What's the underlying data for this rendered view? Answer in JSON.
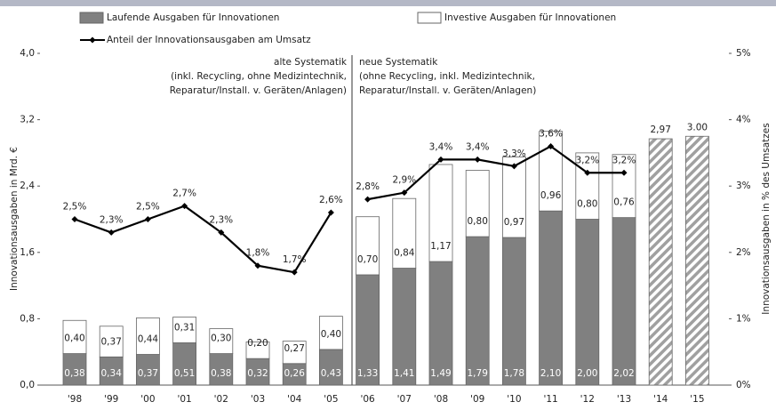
{
  "chart_data": {
    "type": "bar",
    "stacked": true,
    "categories": [
      "'98",
      "'99",
      "'00",
      "'01",
      "'02",
      "'03",
      "'04",
      "'05",
      "'06",
      "'07",
      "'08",
      "'09",
      "'10",
      "'11",
      "'12",
      "'13",
      "'14",
      "'15"
    ],
    "series": [
      {
        "name": "Laufende Ausgaben für Innovationen",
        "color": "#808080",
        "values": [
          0.38,
          0.34,
          0.37,
          0.51,
          0.38,
          0.32,
          0.26,
          0.43,
          1.33,
          1.41,
          1.49,
          1.79,
          1.78,
          2.1,
          2.0,
          2.02,
          null,
          null
        ],
        "value_labels": [
          "0,38",
          "0,34",
          "0,37",
          "0,51",
          "0,38",
          "0,32",
          "0,26",
          "0,43",
          "1,33",
          "1,41",
          "1,49",
          "1,79",
          "1,78",
          "2,10",
          "2,00",
          "2,02",
          null,
          null
        ]
      },
      {
        "name": "Investive Ausgaben für Innovationen",
        "color": "#ffffff",
        "values": [
          0.4,
          0.37,
          0.44,
          0.31,
          0.3,
          0.2,
          0.27,
          0.4,
          0.7,
          0.84,
          1.17,
          0.8,
          0.97,
          0.96,
          0.8,
          0.76,
          null,
          null
        ],
        "value_labels": [
          "0,40",
          "0,37",
          "0,44",
          "0,31",
          "0,30",
          "0,20",
          "0,27",
          "0,40",
          "0,70",
          "0,84",
          "1,17",
          "0,80",
          "0,97",
          "0,96",
          "0,80",
          "0,76",
          null,
          null
        ]
      },
      {
        "pattern": "hatched",
        "color": "#a0a0a0",
        "values": [
          null,
          null,
          null,
          null,
          null,
          null,
          null,
          null,
          null,
          null,
          null,
          null,
          null,
          null,
          null,
          null,
          2.97,
          3.0
        ],
        "value_labels": [
          null,
          null,
          null,
          null,
          null,
          null,
          null,
          null,
          null,
          null,
          null,
          null,
          null,
          null,
          null,
          null,
          "2,97",
          "3.00"
        ]
      },
      {
        "name": "Anteil der Innovationsausgaben am Umsatz",
        "type": "line",
        "axis": "y2",
        "color": "#000000",
        "values": [
          2.5,
          2.3,
          2.5,
          2.7,
          2.3,
          1.8,
          1.7,
          2.6,
          2.8,
          2.9,
          3.4,
          3.4,
          3.3,
          3.6,
          3.2,
          3.2,
          null,
          null
        ],
        "value_labels": [
          "2,5%",
          "2,3%",
          "2,5%",
          "2,7%",
          "2,3%",
          "1,8%",
          "1,7%",
          "2,6%",
          "2,8%",
          "2,9%",
          "3,4%",
          "3,4%",
          "3,3%",
          "3,6%",
          "3,2%",
          "3,2%",
          null,
          null
        ]
      }
    ],
    "y_label": "Innovationsausgaben in Mrd. €",
    "y2_label": "Innovationsausgaben in % des Umsatzes",
    "ylim": [
      0,
      4
    ],
    "yticks": [
      {
        "value": 0,
        "label": "0,0"
      },
      {
        "value": 0.8,
        "label": "0,8"
      },
      {
        "value": 1.6,
        "label": "1,6"
      },
      {
        "value": 2.4,
        "label": "2,4"
      },
      {
        "value": 3.2,
        "label": "3,2"
      },
      {
        "value": 4,
        "label": "4,0"
      }
    ],
    "y2lim": [
      0,
      5
    ],
    "y2ticks": [
      {
        "value": 0,
        "label": "0%"
      },
      {
        "value": 1,
        "label": "1%"
      },
      {
        "value": 2,
        "label": "2%"
      },
      {
        "value": 3,
        "label": "3%"
      },
      {
        "value": 4,
        "label": "4%"
      },
      {
        "value": 5,
        "label": "5%"
      }
    ],
    "annotations": [
      {
        "lines": [
          "alte Systematik",
          "(inkl. Recycling, ohne Medizintechnik,",
          "Reparatur/Install. v. Geräten/Anlagen)"
        ]
      },
      {
        "lines": [
          "neue Systematik",
          "(ohne Recycling, inkl. Medizintechnik,",
          "Reparatur/Install. v. Geräten/Anlagen)"
        ]
      }
    ],
    "grid": false
  }
}
